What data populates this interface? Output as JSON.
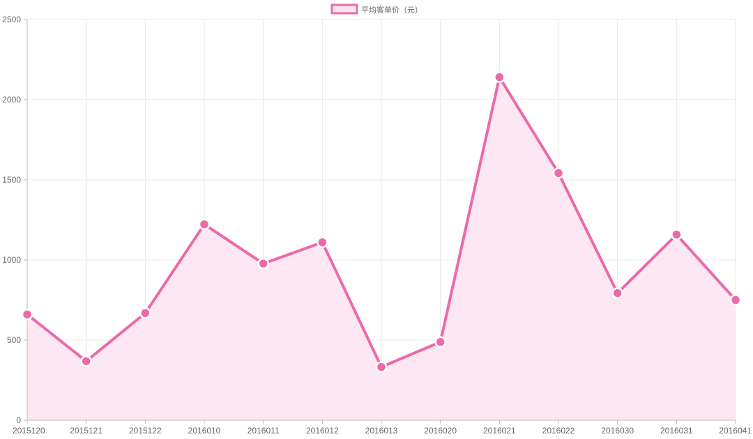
{
  "chart_data": {
    "type": "line",
    "categories": [
      "2015120",
      "2015121",
      "2015122",
      "2016010",
      "2016011",
      "2016012",
      "2016013",
      "2016020",
      "2016021",
      "2016022",
      "2016030",
      "2016031",
      "2016041"
    ],
    "series": [
      {
        "name": "平均客单价（元）",
        "values": [
          660,
          368,
          668,
          1222,
          977,
          1110,
          332,
          488,
          2140,
          1542,
          793,
          1158,
          750
        ]
      }
    ],
    "yticks": [
      0,
      500,
      1000,
      1500,
      2000,
      2500
    ],
    "ylim": [
      0,
      2500
    ],
    "grid": true,
    "area_fill": true,
    "legend_position": "top-center",
    "colors": {
      "line": "#ec6aa9",
      "fill": "#fce6f1",
      "grid": "#e8e8e8",
      "axis": "#bbbbbb",
      "text": "#666666"
    }
  }
}
